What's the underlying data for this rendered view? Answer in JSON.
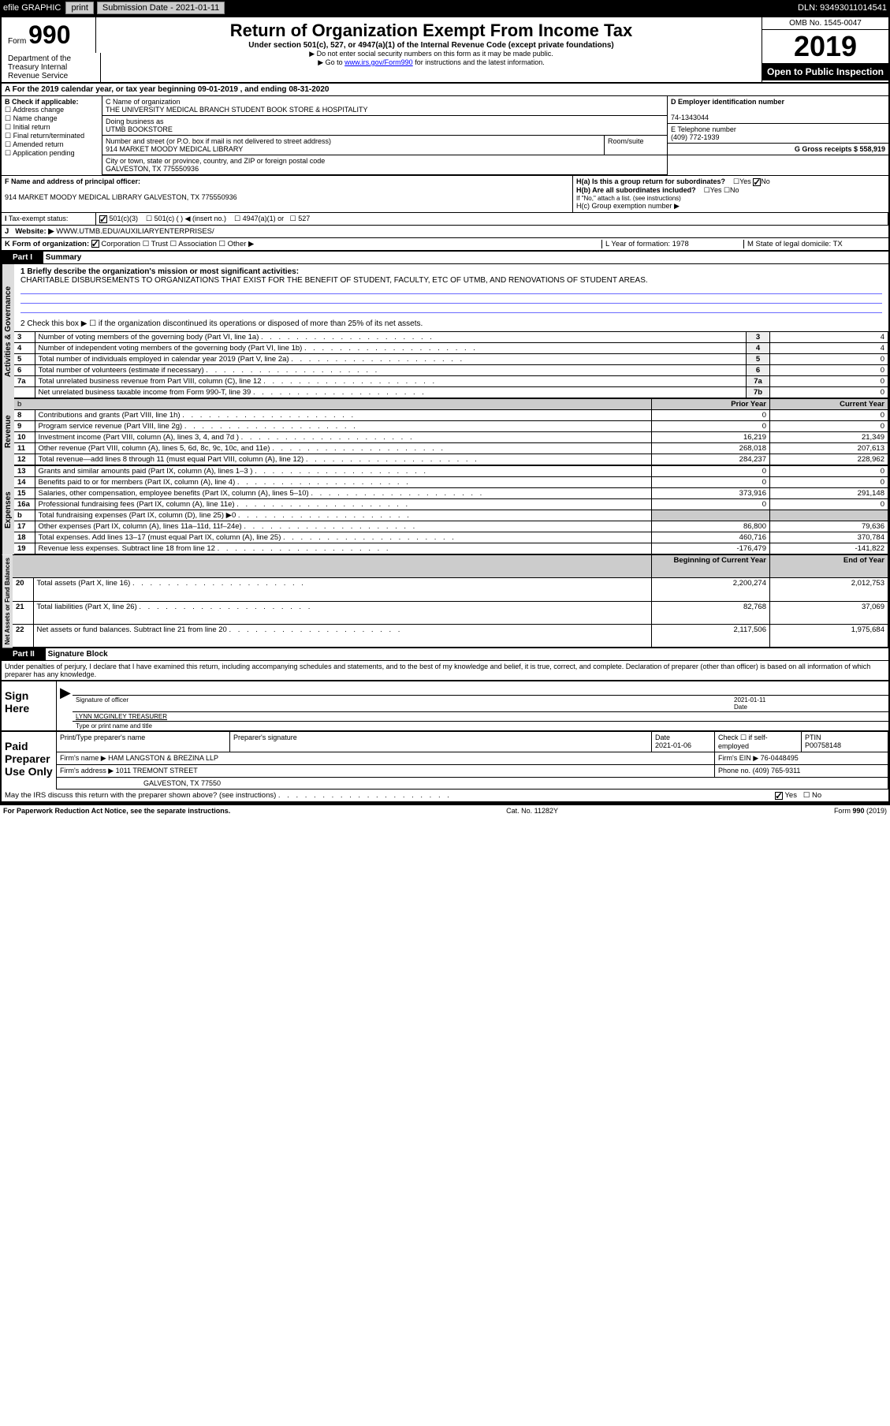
{
  "top": {
    "efile": "efile GRAPHIC",
    "print": "print",
    "subdate_lbl": "Submission Date - 2021-01-11",
    "dln": "DLN: 93493011014541"
  },
  "header": {
    "form_word": "Form",
    "form_num": "990",
    "title": "Return of Organization Exempt From Income Tax",
    "subtitle": "Under section 501(c), 527, or 4947(a)(1) of the Internal Revenue Code (except private foundations)",
    "note1": "▶ Do not enter social security numbers on this form as it may be made public.",
    "note2_pre": "▶ Go to ",
    "note2_link": "www.irs.gov/Form990",
    "note2_post": " for instructions and the latest information.",
    "omb": "OMB No. 1545-0047",
    "year": "2019",
    "open": "Open to Public Inspection",
    "dept": "Department of the Treasury Internal Revenue Service"
  },
  "period": "A For the 2019 calendar year, or tax year beginning 09-01-2019    , and ending 08-31-2020",
  "boxB": {
    "title": "B Check if applicable:",
    "opts": [
      "Address change",
      "Name change",
      "Initial return",
      "Final return/terminated",
      "Amended return",
      "Application pending"
    ]
  },
  "boxC": {
    "name_lbl": "C Name of organization",
    "name": "THE UNIVERSITY MEDICAL BRANCH STUDENT BOOK STORE & HOSPITALITY",
    "dba_lbl": "Doing business as",
    "dba": "UTMB BOOKSTORE",
    "addr_lbl": "Number and street (or P.O. box if mail is not delivered to street address)",
    "room_lbl": "Room/suite",
    "addr": "914 MARKET MOODY MEDICAL LIBRARY",
    "city_lbl": "City or town, state or province, country, and ZIP or foreign postal code",
    "city": "GALVESTON, TX  775550936"
  },
  "boxD": {
    "lbl": "D Employer identification number",
    "val": "74-1343044"
  },
  "boxE": {
    "lbl": "E Telephone number",
    "val": "(409) 772-1939"
  },
  "boxG": {
    "lbl": "G Gross receipts $ 558,919"
  },
  "boxF": {
    "lbl": "F Name and address of principal officer:",
    "val": "914 MARKET MOODY MEDICAL LIBRARY GALVESTON, TX  775550936"
  },
  "boxH": {
    "a": "H(a)  Is this a group return for subordinates?",
    "b": "H(b)  Are all subordinates included?",
    "note": "If \"No,\" attach a list. (see instructions)",
    "c": "H(c)  Group exemption number ▶",
    "yes": "Yes",
    "no": "No"
  },
  "taxexempt": {
    "lbl": "Tax-exempt status:",
    "o1": "501(c)(3)",
    "o2": "501(c) (  ) ◀ (insert no.)",
    "o3": "4947(a)(1) or",
    "o4": "527"
  },
  "rowJ": {
    "lbl": "Website: ▶",
    "val": "WWW.UTMB.EDU/AUXILIARYENTERPRISES/"
  },
  "rowK": {
    "lbl": "K Form of organization:",
    "corp": "Corporation",
    "trust": "Trust",
    "assoc": "Association",
    "other": "Other ▶"
  },
  "rowL": {
    "lbl": "L Year of formation: 1978"
  },
  "rowM": {
    "lbl": "M State of legal domicile: TX"
  },
  "part1": {
    "label": "Part I",
    "title": "Summary",
    "l1": "1  Briefly describe the organization's mission or most significant activities:",
    "mission": "CHARITABLE DISBURSEMENTS TO ORGANIZATIONS THAT EXIST FOR THE BENEFIT OF STUDENT, FACULTY, ETC OF UTMB, AND RENOVATIONS OF STUDENT AREAS.",
    "l2": "2  Check this box ▶ ☐  if the organization discontinued its operations or disposed of more than 25% of its net assets.",
    "hdrPY": "Prior Year",
    "hdrCY": "Current Year",
    "hdrBY": "Beginning of Current Year",
    "hdrEY": "End of Year"
  },
  "rows_gov": [
    {
      "n": "3",
      "d": "Number of voting members of the governing body (Part VI, line 1a)",
      "b": "3",
      "v": "4"
    },
    {
      "n": "4",
      "d": "Number of independent voting members of the governing body (Part VI, line 1b)",
      "b": "4",
      "v": "4"
    },
    {
      "n": "5",
      "d": "Total number of individuals employed in calendar year 2019 (Part V, line 2a)",
      "b": "5",
      "v": "0"
    },
    {
      "n": "6",
      "d": "Total number of volunteers (estimate if necessary)",
      "b": "6",
      "v": "0"
    },
    {
      "n": "7a",
      "d": "Total unrelated business revenue from Part VIII, column (C), line 12",
      "b": "7a",
      "v": "0"
    },
    {
      "n": "",
      "d": "Net unrelated business taxable income from Form 990-T, line 39",
      "b": "7b",
      "v": "0"
    }
  ],
  "rows_rev": [
    {
      "n": "8",
      "d": "Contributions and grants (Part VIII, line 1h)",
      "py": "0",
      "cy": "0"
    },
    {
      "n": "9",
      "d": "Program service revenue (Part VIII, line 2g)",
      "py": "0",
      "cy": "0"
    },
    {
      "n": "10",
      "d": "Investment income (Part VIII, column (A), lines 3, 4, and 7d )",
      "py": "16,219",
      "cy": "21,349"
    },
    {
      "n": "11",
      "d": "Other revenue (Part VIII, column (A), lines 5, 6d, 8c, 9c, 10c, and 11e)",
      "py": "268,018",
      "cy": "207,613"
    },
    {
      "n": "12",
      "d": "Total revenue—add lines 8 through 11 (must equal Part VIII, column (A), line 12)",
      "py": "284,237",
      "cy": "228,962"
    }
  ],
  "rows_exp": [
    {
      "n": "13",
      "d": "Grants and similar amounts paid (Part IX, column (A), lines 1–3 )",
      "py": "0",
      "cy": "0"
    },
    {
      "n": "14",
      "d": "Benefits paid to or for members (Part IX, column (A), line 4)",
      "py": "0",
      "cy": "0"
    },
    {
      "n": "15",
      "d": "Salaries, other compensation, employee benefits (Part IX, column (A), lines 5–10)",
      "py": "373,916",
      "cy": "291,148"
    },
    {
      "n": "16a",
      "d": "Professional fundraising fees (Part IX, column (A), line 11e)",
      "py": "0",
      "cy": "0"
    },
    {
      "n": "b",
      "d": "Total fundraising expenses (Part IX, column (D), line 25) ▶0",
      "py": "",
      "cy": "",
      "shade": true
    },
    {
      "n": "17",
      "d": "Other expenses (Part IX, column (A), lines 11a–11d, 11f–24e)",
      "py": "86,800",
      "cy": "79,636"
    },
    {
      "n": "18",
      "d": "Total expenses. Add lines 13–17 (must equal Part IX, column (A), line 25)",
      "py": "460,716",
      "cy": "370,784"
    },
    {
      "n": "19",
      "d": "Revenue less expenses. Subtract line 18 from line 12",
      "py": "-176,479",
      "cy": "-141,822"
    }
  ],
  "rows_net": [
    {
      "n": "20",
      "d": "Total assets (Part X, line 16)",
      "py": "2,200,274",
      "cy": "2,012,753"
    },
    {
      "n": "21",
      "d": "Total liabilities (Part X, line 26)",
      "py": "82,768",
      "cy": "37,069"
    },
    {
      "n": "22",
      "d": "Net assets or fund balances. Subtract line 21 from line 20",
      "py": "2,117,506",
      "cy": "1,975,684"
    }
  ],
  "vtabs": {
    "gov": "Activities & Governance",
    "rev": "Revenue",
    "exp": "Expenses",
    "net": "Net Assets or Fund Balances"
  },
  "part2": {
    "label": "Part II",
    "title": "Signature Block",
    "perjury": "Under penalties of perjury, I declare that I have examined this return, including accompanying schedules and statements, and to the best of my knowledge and belief, it is true, correct, and complete. Declaration of preparer (other than officer) is based on all information of which preparer has any knowledge."
  },
  "sign": {
    "here": "Sign Here",
    "sig_lbl": "Signature of officer",
    "date_lbl": "Date",
    "date": "2021-01-11",
    "name": "LYNN MCGINLEY TREASURER",
    "name_lbl": "Type or print name and title"
  },
  "paid": {
    "here": "Paid Preparer Use Only",
    "pname_lbl": "Print/Type preparer's name",
    "psig_lbl": "Preparer's signature",
    "pdate_lbl": "Date",
    "pdate": "2021-01-06",
    "pcheck_lbl": "Check ☐ if self-employed",
    "ptin_lbl": "PTIN",
    "ptin": "P00758148",
    "firm_lbl": "Firm's name     ▶",
    "firm": "HAM LANGSTON & BREZINA LLP",
    "fein_lbl": "Firm's EIN ▶",
    "fein": "76-0448495",
    "faddr_lbl": "Firm's address ▶",
    "faddr1": "1011 TREMONT STREET",
    "faddr2": "GALVESTON, TX  77550",
    "fphone_lbl": "Phone no.",
    "fphone": "(409) 765-9311",
    "discuss": "May the IRS discuss this return with the preparer shown above? (see instructions)"
  },
  "footer": {
    "left": "For Paperwork Reduction Act Notice, see the separate instructions.",
    "mid": "Cat. No. 11282Y",
    "right": "Form 990 (2019)"
  }
}
